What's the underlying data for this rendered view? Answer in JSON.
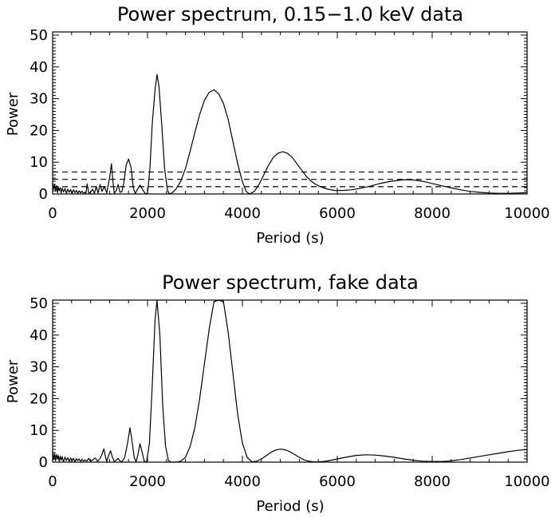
{
  "chart_data": [
    {
      "type": "line",
      "title": "Power spectrum, 0.15−1.0 keV data",
      "xlabel": "Period (s)",
      "ylabel": "Power",
      "xlim": [
        0,
        10000
      ],
      "ylim": [
        0,
        50
      ],
      "x_ticks": [
        0,
        2000,
        4000,
        6000,
        8000,
        10000
      ],
      "y_ticks": [
        0,
        10,
        20,
        30,
        40,
        50
      ],
      "grid": false,
      "series": [
        {
          "values": [
            [
              0,
              3.5
            ],
            [
              20,
              1.5
            ],
            [
              40,
              3.0
            ],
            [
              60,
              0.8
            ],
            [
              80,
              2.6
            ],
            [
              100,
              0.4
            ],
            [
              120,
              2.2
            ],
            [
              140,
              1.0
            ],
            [
              160,
              2.0
            ],
            [
              180,
              0.3
            ],
            [
              200,
              1.8
            ],
            [
              230,
              0.6
            ],
            [
              260,
              1.7
            ],
            [
              290,
              0.2
            ],
            [
              320,
              1.5
            ],
            [
              350,
              0.5
            ],
            [
              380,
              1.4
            ],
            [
              410,
              0.1
            ],
            [
              440,
              1.3
            ],
            [
              470,
              0.4
            ],
            [
              500,
              1.1
            ],
            [
              530,
              0.2
            ],
            [
              560,
              1.0
            ],
            [
              590,
              0.3
            ],
            [
              620,
              0.9
            ],
            [
              650,
              0.1
            ],
            [
              680,
              0.6
            ],
            [
              700,
              0.2
            ],
            [
              730,
              3.2
            ],
            [
              760,
              0.3
            ],
            [
              800,
              0.5
            ],
            [
              840,
              1.5
            ],
            [
              880,
              0.2
            ],
            [
              920,
              2.3
            ],
            [
              960,
              0.3
            ],
            [
              1000,
              3.0
            ],
            [
              1040,
              0.8
            ],
            [
              1090,
              2.3
            ],
            [
              1140,
              0.3
            ],
            [
              1200,
              5.0
            ],
            [
              1240,
              9.5
            ],
            [
              1270,
              4.0
            ],
            [
              1300,
              0.2
            ],
            [
              1340,
              1.0
            ],
            [
              1380,
              3.0
            ],
            [
              1420,
              0.5
            ],
            [
              1460,
              0.8
            ],
            [
              1500,
              3.5
            ],
            [
              1550,
              9.0
            ],
            [
              1600,
              11.0
            ],
            [
              1650,
              8.5
            ],
            [
              1700,
              2.0
            ],
            [
              1740,
              0.1
            ],
            [
              1790,
              1.5
            ],
            [
              1840,
              2.8
            ],
            [
              1890,
              1.5
            ],
            [
              1950,
              0.2
            ],
            [
              2000,
              0.1
            ],
            [
              2050,
              8.0
            ],
            [
              2100,
              22.0
            ],
            [
              2160,
              33.0
            ],
            [
              2200,
              37.6
            ],
            [
              2240,
              34.0
            ],
            [
              2300,
              22.0
            ],
            [
              2360,
              8.0
            ],
            [
              2420,
              1.2
            ],
            [
              2460,
              0.0
            ],
            [
              2520,
              0.4
            ],
            [
              2600,
              1.5
            ],
            [
              2700,
              4.0
            ],
            [
              2800,
              8.0
            ],
            [
              2900,
              13.5
            ],
            [
              3000,
              19.5
            ],
            [
              3100,
              25.0
            ],
            [
              3200,
              29.5
            ],
            [
              3300,
              32.0
            ],
            [
              3400,
              32.8
            ],
            [
              3500,
              31.5
            ],
            [
              3600,
              28.5
            ],
            [
              3700,
              23.5
            ],
            [
              3800,
              16.5
            ],
            [
              3900,
              9.5
            ],
            [
              4000,
              3.8
            ],
            [
              4080,
              0.8
            ],
            [
              4150,
              0.0
            ],
            [
              4250,
              0.8
            ],
            [
              4350,
              3.0
            ],
            [
              4450,
              6.0
            ],
            [
              4550,
              9.0
            ],
            [
              4650,
              11.5
            ],
            [
              4750,
              12.8
            ],
            [
              4850,
              13.3
            ],
            [
              4950,
              12.8
            ],
            [
              5050,
              11.5
            ],
            [
              5150,
              9.5
            ],
            [
              5250,
              7.5
            ],
            [
              5350,
              5.5
            ],
            [
              5450,
              4.0
            ],
            [
              5550,
              3.0
            ],
            [
              5650,
              2.2
            ],
            [
              5800,
              1.5
            ],
            [
              5950,
              1.1
            ],
            [
              6100,
              1.1
            ],
            [
              6300,
              1.3
            ],
            [
              6500,
              1.8
            ],
            [
              6700,
              2.5
            ],
            [
              6900,
              3.3
            ],
            [
              7100,
              3.9
            ],
            [
              7300,
              4.3
            ],
            [
              7450,
              4.5
            ],
            [
              7600,
              4.4
            ],
            [
              7800,
              4.0
            ],
            [
              8000,
              3.3
            ],
            [
              8200,
              2.6
            ],
            [
              8400,
              1.9
            ],
            [
              8600,
              1.3
            ],
            [
              8800,
              0.8
            ],
            [
              9000,
              0.5
            ],
            [
              9200,
              0.3
            ],
            [
              9400,
              0.2
            ],
            [
              9600,
              0.2
            ],
            [
              9800,
              0.3
            ],
            [
              10000,
              0.4
            ]
          ]
        }
      ],
      "threshold_lines": [
        2.3,
        4.6,
        6.9
      ]
    },
    {
      "type": "line",
      "title": "Power spectrum, fake data",
      "xlabel": "Period (s)",
      "ylabel": "Power",
      "xlim": [
        0,
        10000
      ],
      "ylim": [
        0,
        50
      ],
      "x_ticks": [
        0,
        2000,
        4000,
        6000,
        8000,
        10000
      ],
      "y_ticks": [
        0,
        10,
        20,
        30,
        40,
        50
      ],
      "grid": false,
      "series": [
        {
          "values": [
            [
              0,
              3.2
            ],
            [
              20,
              0.8
            ],
            [
              40,
              2.7
            ],
            [
              60,
              0.4
            ],
            [
              80,
              2.4
            ],
            [
              100,
              0.9
            ],
            [
              120,
              2.1
            ],
            [
              140,
              0.2
            ],
            [
              160,
              1.9
            ],
            [
              180,
              0.6
            ],
            [
              200,
              1.7
            ],
            [
              230,
              0.1
            ],
            [
              260,
              1.6
            ],
            [
              290,
              0.5
            ],
            [
              320,
              1.4
            ],
            [
              350,
              0.2
            ],
            [
              380,
              1.3
            ],
            [
              410,
              0.4
            ],
            [
              440,
              1.2
            ],
            [
              470,
              0.1
            ],
            [
              500,
              1.1
            ],
            [
              530,
              0.5
            ],
            [
              560,
              1.0
            ],
            [
              590,
              0.2
            ],
            [
              620,
              0.9
            ],
            [
              650,
              0.3
            ],
            [
              680,
              0.7
            ],
            [
              720,
              0.3
            ],
            [
              760,
              1.2
            ],
            [
              800,
              0.2
            ],
            [
              850,
              0.8
            ],
            [
              900,
              1.3
            ],
            [
              950,
              0.2
            ],
            [
              1000,
              1.2
            ],
            [
              1040,
              2.5
            ],
            [
              1080,
              4.2
            ],
            [
              1110,
              2.0
            ],
            [
              1140,
              0.2
            ],
            [
              1180,
              2.0
            ],
            [
              1220,
              3.6
            ],
            [
              1260,
              1.5
            ],
            [
              1300,
              0.2
            ],
            [
              1340,
              0.6
            ],
            [
              1380,
              1.2
            ],
            [
              1420,
              0.3
            ],
            [
              1460,
              0.1
            ],
            [
              1520,
              1.5
            ],
            [
              1580,
              6.0
            ],
            [
              1630,
              10.8
            ],
            [
              1670,
              7.0
            ],
            [
              1720,
              1.5
            ],
            [
              1760,
              0.1
            ],
            [
              1800,
              2.5
            ],
            [
              1840,
              5.8
            ],
            [
              1880,
              3.5
            ],
            [
              1930,
              0.3
            ],
            [
              1980,
              0.0
            ],
            [
              2040,
              6.0
            ],
            [
              2100,
              24.0
            ],
            [
              2160,
              45.0
            ],
            [
              2200,
              53.0
            ],
            [
              2260,
              40.0
            ],
            [
              2320,
              18.0
            ],
            [
              2380,
              5.0
            ],
            [
              2440,
              0.5
            ],
            [
              2500,
              0.0
            ],
            [
              2600,
              0.0
            ],
            [
              2700,
              0.3
            ],
            [
              2800,
              1.5
            ],
            [
              2900,
              5.0
            ],
            [
              3000,
              11.0
            ],
            [
              3100,
              20.0
            ],
            [
              3200,
              31.0
            ],
            [
              3300,
              42.0
            ],
            [
              3400,
              50.5
            ],
            [
              3500,
              53.5
            ],
            [
              3600,
              50.5
            ],
            [
              3700,
              41.0
            ],
            [
              3800,
              28.0
            ],
            [
              3900,
              15.0
            ],
            [
              4000,
              6.0
            ],
            [
              4100,
              1.5
            ],
            [
              4200,
              0.1
            ],
            [
              4300,
              0.3
            ],
            [
              4400,
              1.0
            ],
            [
              4500,
              2.0
            ],
            [
              4600,
              3.1
            ],
            [
              4700,
              3.8
            ],
            [
              4800,
              4.1
            ],
            [
              4900,
              3.9
            ],
            [
              5000,
              3.3
            ],
            [
              5100,
              2.4
            ],
            [
              5200,
              1.5
            ],
            [
              5300,
              0.7
            ],
            [
              5400,
              0.3
            ],
            [
              5500,
              0.1
            ],
            [
              5600,
              0.1
            ],
            [
              5700,
              0.2
            ],
            [
              5800,
              0.4
            ],
            [
              6000,
              1.0
            ],
            [
              6200,
              1.6
            ],
            [
              6400,
              2.1
            ],
            [
              6600,
              2.3
            ],
            [
              6800,
              2.2
            ],
            [
              7000,
              1.9
            ],
            [
              7200,
              1.5
            ],
            [
              7400,
              1.0
            ],
            [
              7600,
              0.6
            ],
            [
              7800,
              0.3
            ],
            [
              8000,
              0.2
            ],
            [
              8200,
              0.2
            ],
            [
              8400,
              0.4
            ],
            [
              8600,
              0.8
            ],
            [
              8800,
              1.3
            ],
            [
              9000,
              1.8
            ],
            [
              9200,
              2.3
            ],
            [
              9400,
              2.8
            ],
            [
              9600,
              3.3
            ],
            [
              9800,
              3.7
            ],
            [
              10000,
              4.0
            ]
          ]
        }
      ]
    }
  ]
}
